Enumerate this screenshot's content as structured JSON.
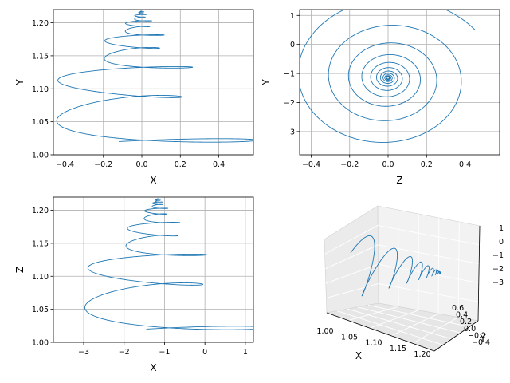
{
  "colors": {
    "line": "#1f77b4",
    "grid": "#b0b0b0",
    "pane": "#f2f2f2"
  },
  "chart_data": [
    {
      "type": "line",
      "xlabel": "X",
      "ylabel": "Y",
      "xlim": [
        -0.46,
        0.58
      ],
      "ylim": [
        1.0,
        1.22
      ],
      "xticks": [
        -0.4,
        -0.2,
        0.0,
        0.2,
        0.4
      ],
      "yticks": [
        1.0,
        1.05,
        1.1,
        1.15,
        1.2
      ],
      "xtick_labels": [
        "−0.4",
        "−0.2",
        "0.0",
        "0.2",
        "0.4"
      ],
      "ytick_labels": [
        "1.00",
        "1.05",
        "1.10",
        "1.15",
        "1.20"
      ],
      "grid": true
    },
    {
      "type": "line",
      "xlabel": "Z",
      "ylabel": "Y",
      "xlim": [
        -0.46,
        0.58
      ],
      "ylim": [
        -3.8,
        1.2
      ],
      "xticks": [
        -0.4,
        -0.2,
        0.0,
        0.2,
        0.4
      ],
      "yticks": [
        -3,
        -2,
        -1,
        0,
        1
      ],
      "xtick_labels": [
        "−0.4",
        "−0.2",
        "0.0",
        "0.2",
        "0.4"
      ],
      "ytick_labels": [
        "−3",
        "−2",
        "−1",
        "0",
        "1"
      ],
      "grid": true
    },
    {
      "type": "line",
      "xlabel": "X",
      "ylabel": "Z",
      "xlim": [
        -3.75,
        1.2
      ],
      "ylim": [
        1.0,
        1.22
      ],
      "xticks": [
        -3,
        -2,
        -1,
        0,
        1
      ],
      "yticks": [
        1.0,
        1.05,
        1.1,
        1.15,
        1.2
      ],
      "xtick_labels": [
        "−3",
        "−2",
        "−1",
        "0",
        "1"
      ],
      "ytick_labels": [
        "1.00",
        "1.05",
        "1.10",
        "1.15",
        "1.20"
      ],
      "grid": true
    },
    {
      "type": "line3d",
      "xlabel": "X",
      "ylabel": "Y",
      "zlabel": "",
      "xtick_labels": [
        "1.00",
        "1.05",
        "1.10",
        "1.15",
        "1.20"
      ],
      "ytick_labels": [
        "−0.4",
        "−0.2",
        "0.0",
        "0.2",
        "0.4",
        "0.6"
      ],
      "ztick_labels": [
        "1",
        "0",
        "−1",
        "−2",
        "−3"
      ],
      "grid": true
    }
  ]
}
